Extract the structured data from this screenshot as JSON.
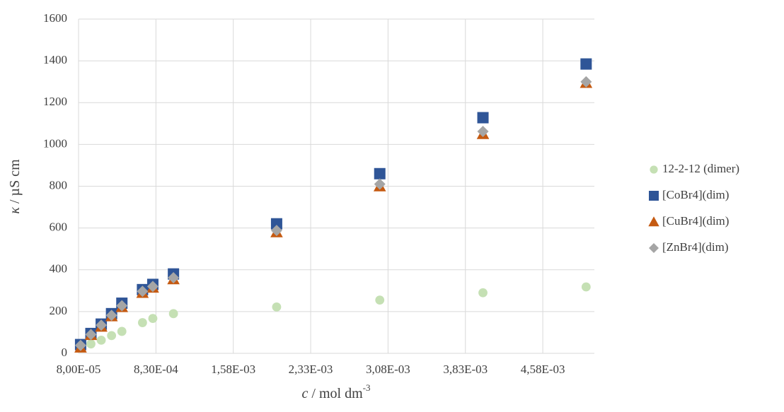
{
  "chart_data": {
    "type": "scatter",
    "x_label": {
      "symbol": "c",
      "unit": " / mol dm",
      "exp": "-3"
    },
    "y_label": {
      "symbol": "κ",
      "unit": " / µS cm"
    },
    "x": [
      0.0001,
      0.0002,
      0.0003,
      0.0004,
      0.0005,
      0.0007,
      0.0008,
      0.001,
      0.002,
      0.003,
      0.004,
      0.005
    ],
    "series": [
      {
        "name": "12-2-12 (dimer)",
        "color": "#c5e0b4",
        "marker": "circle",
        "values": [
          25,
          45,
          63,
          85,
          105,
          147,
          167,
          190,
          222,
          255,
          290,
          318
        ]
      },
      {
        "name": "[CoBr4](dim)",
        "color": "#2f5597",
        "marker": "square",
        "values": [
          42,
          95,
          140,
          190,
          240,
          305,
          330,
          380,
          620,
          860,
          1128,
          1385
        ]
      },
      {
        "name": "[CuBr4](dim)",
        "color": "#c55a11",
        "marker": "triangle",
        "values": [
          28,
          88,
          128,
          178,
          222,
          290,
          315,
          355,
          580,
          800,
          1050,
          1295
        ]
      },
      {
        "name": "[ZnBr4](dim)",
        "color": "#a5a5a5",
        "marker": "diamond",
        "values": [
          38,
          90,
          135,
          182,
          228,
          297,
          320,
          362,
          588,
          810,
          1062,
          1300
        ]
      }
    ],
    "xlim": [
      8e-05,
      0.00508
    ],
    "xticks": [
      {
        "value": 8e-05,
        "label": "8,00E-05"
      },
      {
        "value": 0.00083,
        "label": "8,30E-04"
      },
      {
        "value": 0.00158,
        "label": "1,58E-03"
      },
      {
        "value": 0.00233,
        "label": "2,33E-03"
      },
      {
        "value": 0.00308,
        "label": "3,08E-03"
      },
      {
        "value": 0.00383,
        "label": "3,83E-03"
      },
      {
        "value": 0.00458,
        "label": "4,58E-03"
      }
    ],
    "ylim": [
      0,
      1600
    ],
    "yticks": [
      0,
      200,
      400,
      600,
      800,
      1000,
      1200,
      1400,
      1600
    ],
    "grid": true,
    "legend": "right"
  }
}
